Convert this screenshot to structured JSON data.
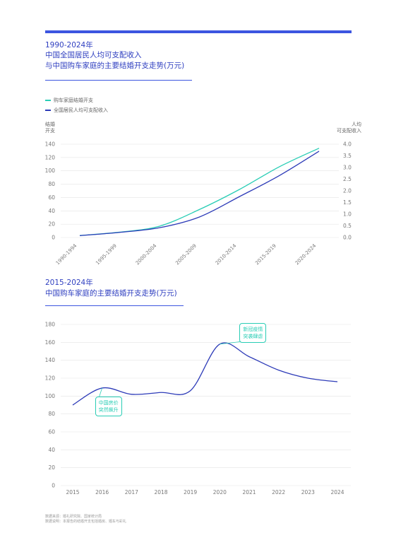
{
  "header": {
    "title_line1": "1990-2024年",
    "title_line2": "中国全国居民人均可支配收入",
    "title_line3": "与中国购车家庭的主要结婚开支走势(万元)"
  },
  "section2": {
    "title_line1": "2015-2024年",
    "title_line2": "中国购车家庭的主要结婚开支走势(万元)"
  },
  "colors": {
    "accent": "#3c55e0",
    "line_wedding": "#29cdb5",
    "line_income": "#2d3bb8",
    "callout": "#29cdb5"
  },
  "chart_data": [
    {
      "type": "line",
      "categories": [
        "1990-1994",
        "1995-1999",
        "2000-2004",
        "2005-2009",
        "2010-2014",
        "2015-2019",
        "2020-2024"
      ],
      "series": [
        {
          "name": "购车家庭结婚开支",
          "axis": "left",
          "values": [
            3,
            8,
            17,
            42,
            72,
            106,
            134
          ]
        },
        {
          "name": "全国居民人均可支配收入",
          "axis": "right",
          "values": [
            0.08,
            0.22,
            0.42,
            0.88,
            1.75,
            2.65,
            3.7
          ]
        }
      ],
      "ylabel_left": "结婚\n开支",
      "ylabel_right": "人均\n可支配收入",
      "ylim_left": [
        0,
        140
      ],
      "ylim_right": [
        0,
        4.0
      ],
      "yticks_left": [
        "0",
        "20",
        "40",
        "60",
        "80",
        "100",
        "120",
        "140"
      ],
      "yticks_right": [
        "0.0",
        "0.5",
        "1.0",
        "1.5",
        "2.0",
        "2.5",
        "3.0",
        "3.5",
        "4.0"
      ],
      "legend_position": "top-left",
      "grid": true
    },
    {
      "type": "line",
      "categories": [
        "2015",
        "2016",
        "2017",
        "2018",
        "2019",
        "2020",
        "2021",
        "2022",
        "2023",
        "2024"
      ],
      "series": [
        {
          "values": [
            90,
            109,
            102,
            104,
            106,
            158,
            144,
            129,
            120,
            116
          ]
        }
      ],
      "ylim": [
        0,
        180
      ],
      "yticks": [
        "0",
        "20",
        "40",
        "60",
        "80",
        "100",
        "120",
        "140",
        "160",
        "180"
      ],
      "annotations": [
        {
          "text_line1": "中国房价",
          "text_line2": "突然飙升",
          "x": "2016",
          "y": 109
        },
        {
          "text_line1": "新冠疫情",
          "text_line2": "突袭肆虐",
          "x": "2020",
          "y": 158
        }
      ],
      "grid": true
    }
  ],
  "footnotes": {
    "line1": "数据来源：婚礼研究院、国家统计局",
    "line2": "数据说明：本报告的结婚开支包括婚房、婚车与彩礼"
  }
}
